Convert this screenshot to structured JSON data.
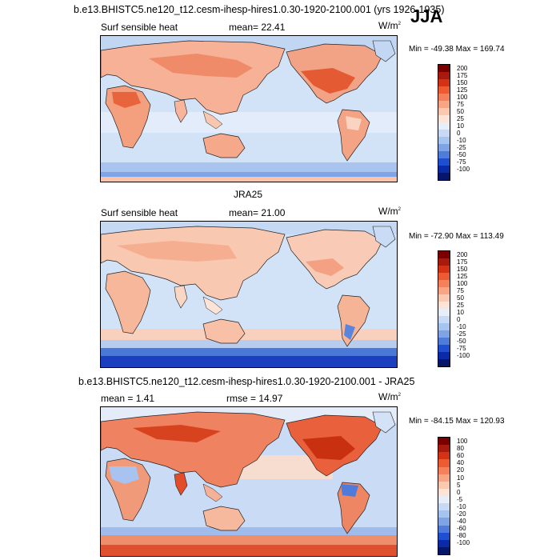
{
  "page": {
    "case_title": "b.e13.BHISTC5.ne120_t12.cesm-ihesp-hires1.0.30-1920-2100.001 (yrs 1926-1935)",
    "season": "JJA"
  },
  "panels": [
    {
      "id": "model",
      "heading": "",
      "left_label": "Surf sensible heat",
      "center_label": "mean=  22.41",
      "units_base": "W/m",
      "units_exp": "2",
      "minmax": "Min = -49.38 Max = 169.74",
      "colorbar_labels": [
        "200",
        "175",
        "150",
        "125",
        "100",
        "75",
        "50",
        "25",
        "10",
        "0",
        "-10",
        "-25",
        "-50",
        "-75",
        "-100"
      ],
      "colorbar_colors": [
        "#7a0000",
        "#a81a0e",
        "#d33314",
        "#ee5a32",
        "#f4805c",
        "#f8a585",
        "#fbc8b0",
        "#fde4d6",
        "#e6eefa",
        "#c7d9f5",
        "#a6c4f0",
        "#7fa4e6",
        "#4f7bdb",
        "#1f4ed0",
        "#0a2aa8",
        "#06176b"
      ]
    },
    {
      "id": "obs",
      "heading": "JRA25",
      "left_label": "Surf sensible heat",
      "center_label": "mean=  21.00",
      "units_base": "W/m",
      "units_exp": "2",
      "minmax": "Min = -72.90 Max = 113.49",
      "colorbar_labels": [
        "200",
        "175",
        "150",
        "125",
        "100",
        "75",
        "50",
        "25",
        "10",
        "0",
        "-10",
        "-25",
        "-50",
        "-75",
        "-100"
      ],
      "colorbar_colors": [
        "#7a0000",
        "#a81a0e",
        "#d33314",
        "#ee5a32",
        "#f4805c",
        "#f8a585",
        "#fbc8b0",
        "#fde4d6",
        "#e6eefa",
        "#c7d9f5",
        "#a6c4f0",
        "#7fa4e6",
        "#4f7bdb",
        "#1f4ed0",
        "#0a2aa8",
        "#06176b"
      ]
    },
    {
      "id": "diff",
      "heading": "b.e13.BHISTC5.ne120_t12.cesm-ihesp-hires1.0.30-1920-2100.001 - JRA25",
      "left_label": "mean =   1.41",
      "center_label": "rmse =  14.97",
      "units_base": "W/m",
      "units_exp": "2",
      "minmax": "Min = -84.15 Max = 120.93",
      "colorbar_labels": [
        "100",
        "80",
        "60",
        "40",
        "20",
        "10",
        "5",
        "0",
        "-5",
        "-10",
        "-20",
        "-40",
        "-60",
        "-80",
        "-100"
      ],
      "colorbar_colors": [
        "#7a0000",
        "#a81a0e",
        "#d33314",
        "#ee5a32",
        "#f4805c",
        "#f8a585",
        "#fbc8b0",
        "#fde4d6",
        "#e6eefa",
        "#c7d9f5",
        "#a6c4f0",
        "#7fa4e6",
        "#4f7bdb",
        "#1f4ed0",
        "#0a2aa8",
        "#06176b"
      ]
    }
  ]
}
